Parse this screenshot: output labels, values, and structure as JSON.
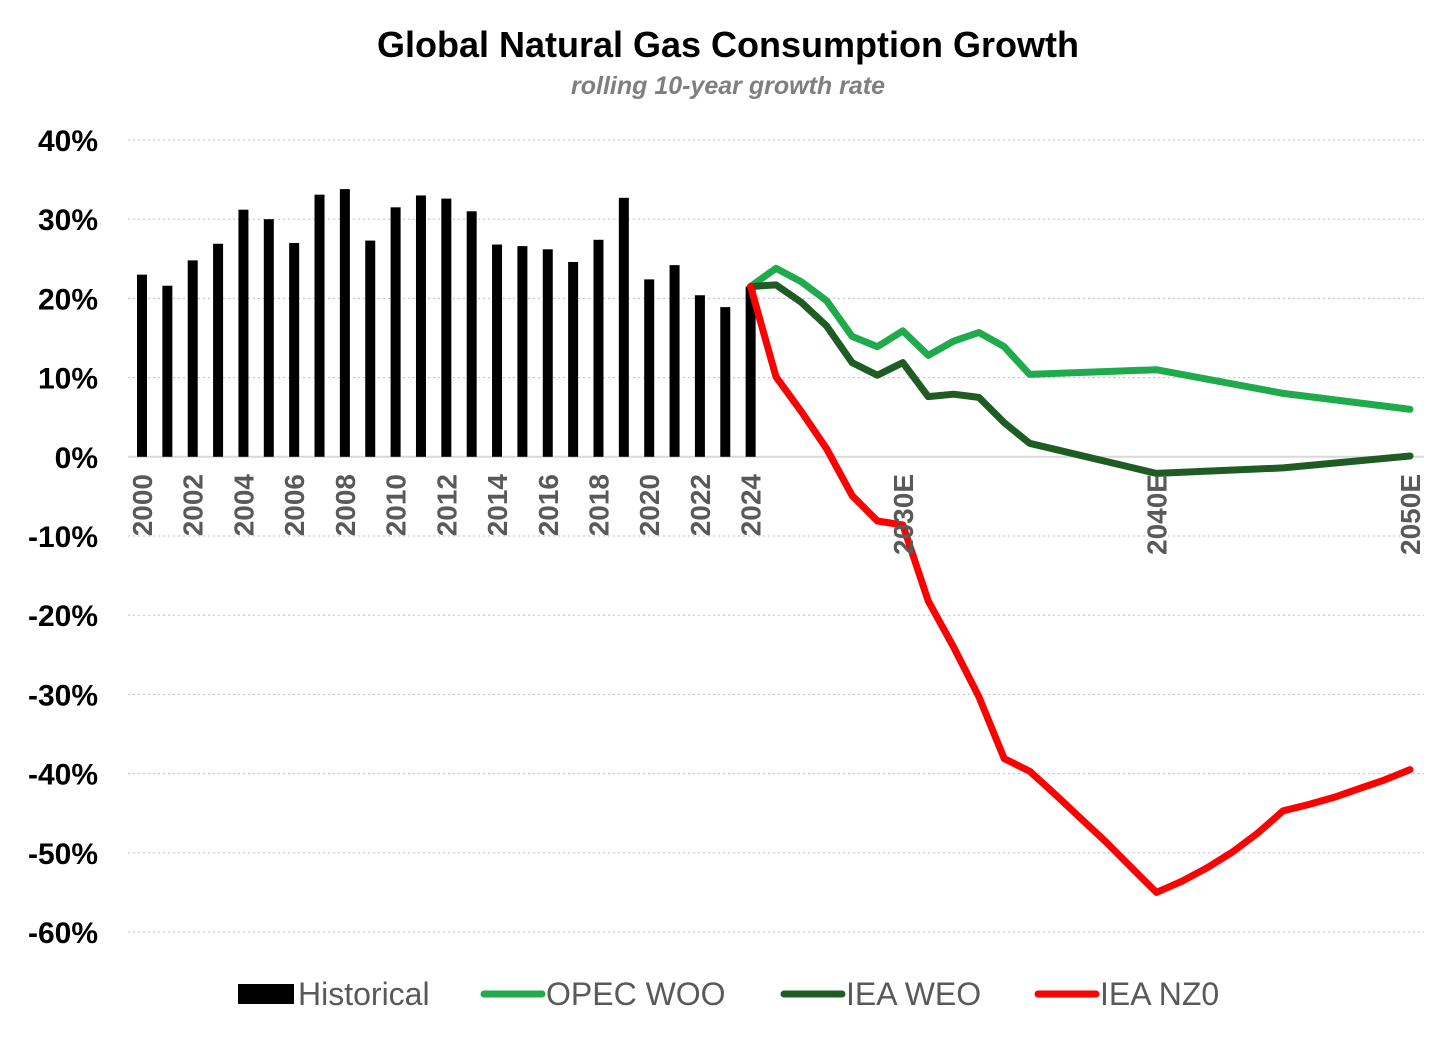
{
  "chart_data": {
    "type": "bar+line",
    "title": "Global Natural Gas Consumption Growth",
    "subtitle": "rolling 10-year growth rate",
    "ylim": [
      -60,
      40
    ],
    "yticks": [
      40,
      30,
      20,
      10,
      0,
      -10,
      -20,
      -30,
      -40,
      -50,
      -60
    ],
    "ytick_labels": [
      "40%",
      "30%",
      "20%",
      "10%",
      "0%",
      "-10%",
      "-20%",
      "-30%",
      "-40%",
      "-50%",
      "-60%"
    ],
    "x_range": [
      2000,
      2050
    ],
    "xticks_hist": [
      2000,
      2002,
      2004,
      2006,
      2008,
      2010,
      2012,
      2014,
      2016,
      2018,
      2020,
      2022,
      2024
    ],
    "xtick_labels_hist": [
      "2000",
      "2002",
      "2004",
      "2006",
      "2008",
      "2010",
      "2012",
      "2014",
      "2016",
      "2018",
      "2020",
      "2022",
      "2024"
    ],
    "xticks_proj": [
      2030,
      2040,
      2050
    ],
    "xtick_labels_proj": [
      "2030E",
      "2040E",
      "2050E"
    ],
    "grid": true,
    "legend_position": "bottom",
    "historical": {
      "name": "Historical",
      "color": "#000000",
      "years": [
        2000,
        2001,
        2002,
        2003,
        2004,
        2005,
        2006,
        2007,
        2008,
        2009,
        2010,
        2011,
        2012,
        2013,
        2014,
        2015,
        2016,
        2017,
        2018,
        2019,
        2020,
        2021,
        2022,
        2023,
        2024
      ],
      "values": [
        23.0,
        21.6,
        24.8,
        26.9,
        31.2,
        30.0,
        27.0,
        33.1,
        33.8,
        27.3,
        31.5,
        33.0,
        32.6,
        31.0,
        26.8,
        26.6,
        26.2,
        24.6,
        27.4,
        32.7,
        22.4,
        24.2,
        20.4,
        18.9,
        21.5
      ]
    },
    "series": [
      {
        "name": "OPEC WOO",
        "color": "#1faa4b",
        "x": [
          2024,
          2025,
          2026,
          2027,
          2028,
          2029,
          2030,
          2031,
          2032,
          2033,
          2034,
          2035,
          2040,
          2045,
          2050
        ],
        "values": [
          21.5,
          23.8,
          22.1,
          19.7,
          15.2,
          13.9,
          15.9,
          12.8,
          14.6,
          15.7,
          13.9,
          10.4,
          11.0,
          8.0,
          6.0
        ]
      },
      {
        "name": "IEA WEO",
        "color": "#1e5c23",
        "x": [
          2024,
          2025,
          2026,
          2027,
          2028,
          2029,
          2030,
          2031,
          2032,
          2033,
          2034,
          2035,
          2040,
          2045,
          2050
        ],
        "values": [
          21.5,
          21.7,
          19.5,
          16.5,
          11.9,
          10.3,
          11.9,
          7.6,
          7.9,
          7.5,
          4.3,
          1.7,
          -2.1,
          -1.4,
          0.1
        ]
      },
      {
        "name": "IEA NZ0",
        "color": "#ff0000",
        "x": [
          2024,
          2025,
          2026,
          2027,
          2028,
          2029,
          2030,
          2031,
          2032,
          2033,
          2034,
          2035,
          2036,
          2037,
          2038,
          2039,
          2040,
          2041,
          2042,
          2043,
          2044,
          2045,
          2046,
          2047,
          2048,
          2049,
          2050
        ],
        "values": [
          21.5,
          10.1,
          5.7,
          1.0,
          -4.9,
          -8.1,
          -8.6,
          -18.2,
          -24.0,
          -30.3,
          -38.1,
          -39.7,
          -42.6,
          -45.6,
          -48.6,
          -51.8,
          -55.0,
          -53.6,
          -51.9,
          -49.9,
          -47.5,
          -44.7,
          -43.9,
          -43.0,
          -41.9,
          -40.8,
          -39.5
        ]
      }
    ]
  }
}
